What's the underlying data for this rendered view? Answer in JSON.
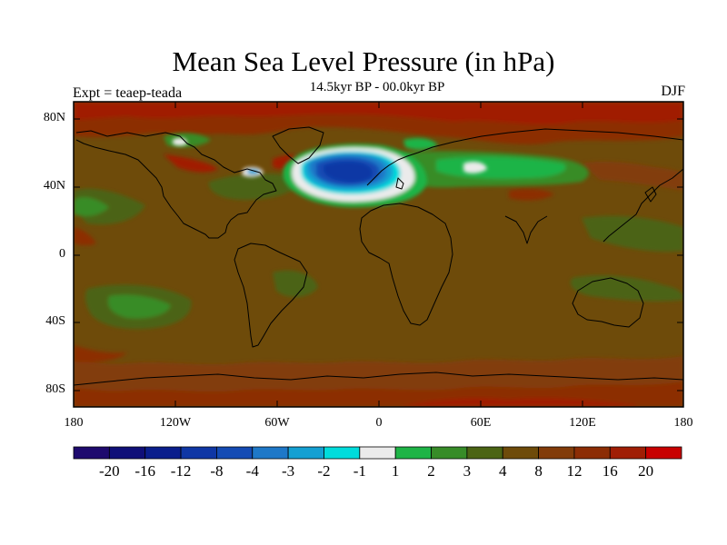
{
  "title": "Mean Sea Level Pressure (in hPa)",
  "subtitle": "14.5kyr BP - 00.0kyr BP",
  "experiment": "Expt = teaep-teada",
  "season": "DJF",
  "lat_ticks": [
    "80N",
    "40N",
    "0",
    "40S",
    "80S"
  ],
  "lon_ticks": [
    "180",
    "120W",
    "60W",
    "0",
    "60E",
    "120E",
    "180"
  ],
  "colorbar": {
    "labels": [
      "-20",
      "-16",
      "-12",
      "-8",
      "-4",
      "-3",
      "-2",
      "-1",
      "1",
      "2",
      "3",
      "4",
      "8",
      "12",
      "16",
      "20"
    ],
    "colors": [
      "#1e0a6e",
      "#0f0f78",
      "#0a1e8c",
      "#0f37a5",
      "#144bb4",
      "#1e78c8",
      "#14a0d2",
      "#00dcdc",
      "#ebebeb",
      "#1eb446",
      "#378c28",
      "#4b6414",
      "#6e4b0a",
      "#823c0a",
      "#8c2d05",
      "#a01e05",
      "#c80000"
    ]
  },
  "map_colors": {
    "ocean_base": "#6e4b0a",
    "neutral": "#ebebeb"
  }
}
